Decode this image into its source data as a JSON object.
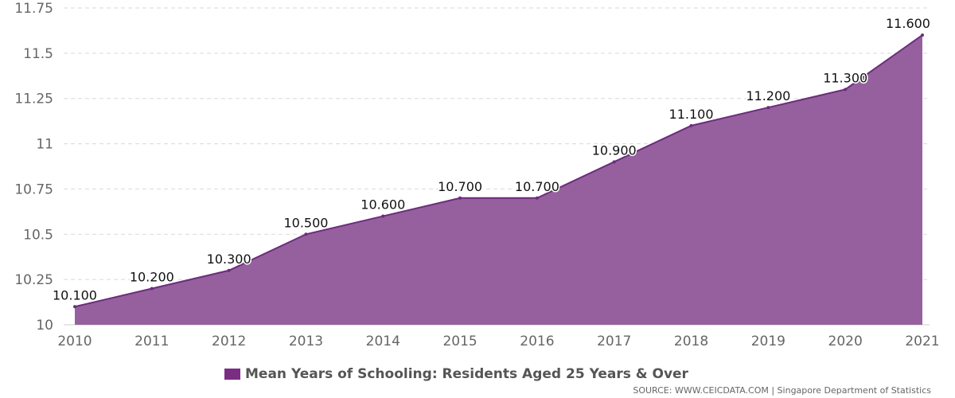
{
  "colors": {
    "series_line": "#6b2d7a",
    "series_fill": "#96609f",
    "legend_swatch": "#7b2d84",
    "grid": "#d9d9d9"
  },
  "chart_data": {
    "type": "area",
    "categories": [
      "2010",
      "2011",
      "2012",
      "2013",
      "2014",
      "2015",
      "2016",
      "2017",
      "2018",
      "2019",
      "2020",
      "2021"
    ],
    "series": [
      {
        "name": "Mean Years of Schooling: Residents Aged 25 Years & Over",
        "values": [
          10.1,
          10.2,
          10.3,
          10.5,
          10.6,
          10.7,
          10.7,
          10.9,
          11.1,
          11.2,
          11.3,
          11.6
        ],
        "data_labels": [
          "10.100",
          "10.200",
          "10.300",
          "10.500",
          "10.600",
          "10.700",
          "10.700",
          "10.900",
          "11.100",
          "11.200",
          "11.300",
          "11.600"
        ]
      }
    ],
    "yticks": [
      "10",
      "10.25",
      "10.5",
      "10.75",
      "11",
      "11.25",
      "11.5",
      "11.75"
    ],
    "ylim": [
      10,
      11.75
    ],
    "grid": true,
    "legend_position": "bottom-center"
  },
  "legend": {
    "label": "Mean Years of Schooling: Residents Aged 25 Years & Over"
  },
  "source": {
    "text": "SOURCE: WWW.CEICDATA.COM | Singapore Department of Statistics"
  }
}
